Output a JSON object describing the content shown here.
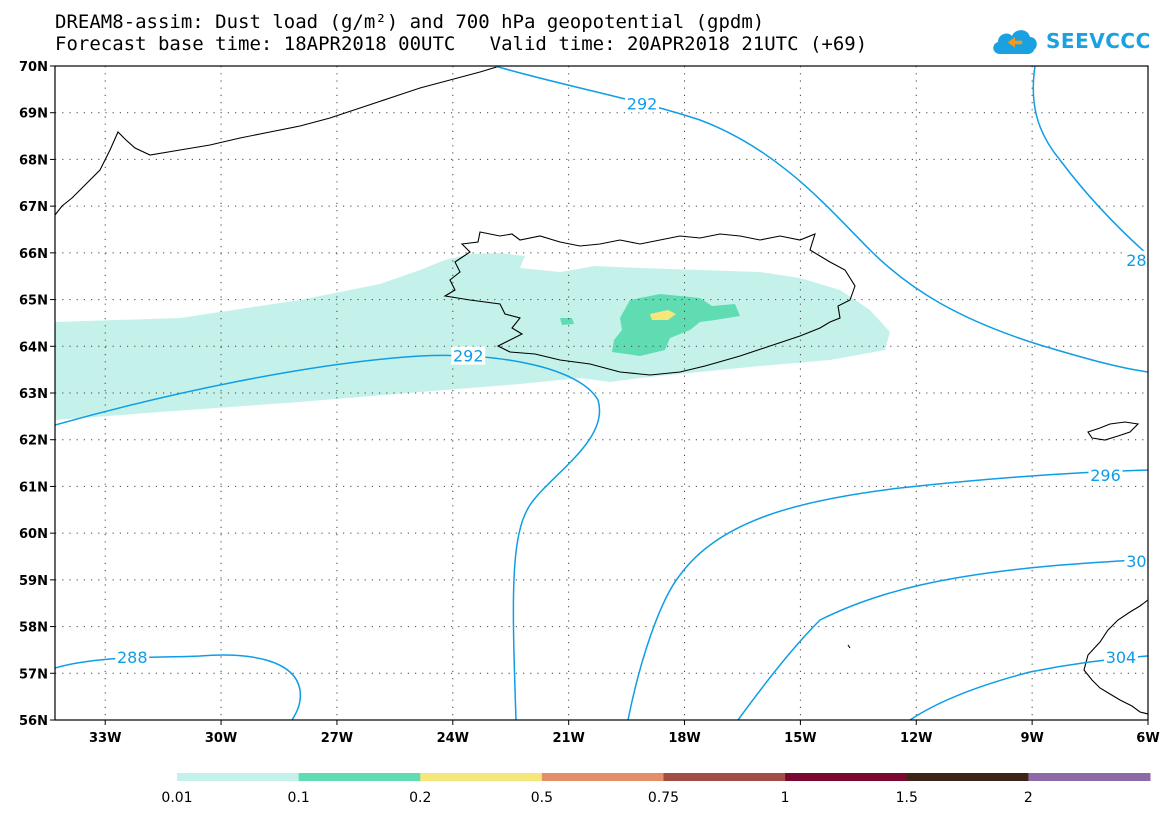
{
  "title": {
    "line1": "DREAM8-assim: Dust load (g/m²) and 700 hPa geopotential (gpdm)",
    "line2": "Forecast base time: 18APR2018 00UTC   Valid time: 20APR2018 21UTC (+69)"
  },
  "logo": {
    "text": "SEEVCCC",
    "icon": "cloud-icon",
    "color": "#1aa1e1"
  },
  "map": {
    "lat_labels": [
      "70N",
      "69N",
      "68N",
      "67N",
      "66N",
      "65N",
      "64N",
      "63N",
      "62N",
      "61N",
      "60N",
      "59N",
      "58N",
      "57N",
      "56N"
    ],
    "lon_labels": [
      "33W",
      "30W",
      "27W",
      "24W",
      "21W",
      "18W",
      "15W",
      "12W",
      "9W",
      "6W"
    ],
    "lat_range": [
      56,
      70
    ],
    "lon_range": [
      -34.3,
      -6
    ],
    "grid": "dotted",
    "contour_color": "#0f9de6",
    "contour_labels": [
      {
        "text": "292",
        "lon": -19.1,
        "lat": 69.2
      },
      {
        "text": "292",
        "lon": -23.6,
        "lat": 63.8
      },
      {
        "text": "288",
        "lon": -32.3,
        "lat": 57.35
      },
      {
        "text": "296",
        "lon": -7.1,
        "lat": 61.25
      },
      {
        "text": "28",
        "lon": -6.3,
        "lat": 65.85
      },
      {
        "text": "30",
        "lon": -6.3,
        "lat": 59.4
      },
      {
        "text": "304",
        "lon": -6.7,
        "lat": 57.35
      }
    ]
  },
  "colorbar": {
    "labels": [
      "0.01",
      "0.1",
      "0.2",
      "0.5",
      "0.75",
      "1",
      "1.5",
      "2"
    ],
    "colors": [
      "#c4f2ea",
      "#5fdcb2",
      "#f5e77a",
      "#e48f6a",
      "#a14e45",
      "#7a0932",
      "#3d2417",
      "#8c6aa8"
    ]
  }
}
